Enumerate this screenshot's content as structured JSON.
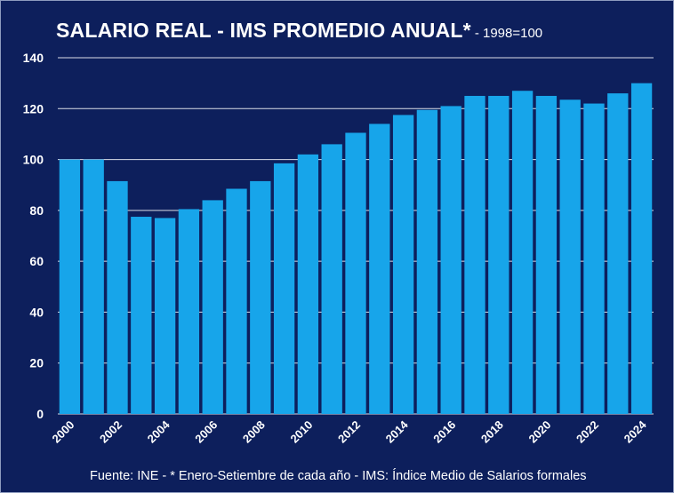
{
  "title": "SALARIO REAL - IMS PROMEDIO ANUAL*",
  "subtitle": "- 1998=100",
  "source": "Fuente: INE - * Enero-Setiembre de cada año - IMS: Índice Medio de Salarios formales",
  "colors": {
    "background": "#0d1f5c",
    "bar": "#17a5ea",
    "text": "#ffffff",
    "grid": "#ffffff"
  },
  "chart_data": {
    "type": "bar",
    "title": "SALARIO REAL - IMS PROMEDIO ANUAL*",
    "subtitle": "- 1998=100",
    "categories": [
      "2000",
      "2001",
      "2002",
      "2003",
      "2004",
      "2005",
      "2006",
      "2007",
      "2008",
      "2009",
      "2010",
      "2011",
      "2012",
      "2013",
      "2014",
      "2015",
      "2016",
      "2017",
      "2018",
      "2019",
      "2020",
      "2021",
      "2022",
      "2023",
      "2024"
    ],
    "x_tick_labels": [
      "2000",
      "",
      "2002",
      "",
      "2004",
      "",
      "2006",
      "",
      "2008",
      "",
      "2010",
      "",
      "2012",
      "",
      "2014",
      "",
      "2016",
      "",
      "2018",
      "",
      "2020",
      "",
      "2022",
      "",
      "2024"
    ],
    "values": [
      100,
      100,
      91.5,
      77.5,
      77,
      80.5,
      84,
      88.5,
      91.5,
      98.5,
      102,
      106,
      110.5,
      114,
      117.5,
      119.5,
      121,
      125,
      125,
      127,
      125,
      123.5,
      122,
      126,
      130
    ],
    "ylim": [
      0,
      140
    ],
    "yticks": [
      0,
      20,
      40,
      60,
      80,
      100,
      120,
      140
    ],
    "xlabel": "",
    "ylabel": "",
    "grid": true,
    "legend": "none"
  }
}
